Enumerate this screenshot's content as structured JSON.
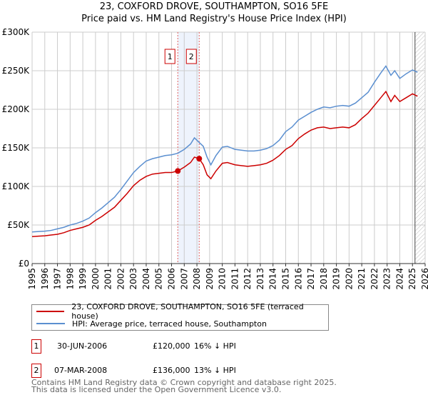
{
  "chart_data": {
    "type": "line",
    "title": "23, COXFORD DROVE, SOUTHAMPTON, SO16 5FE",
    "subtitle": "Price paid vs. HM Land Registry's House Price Index (HPI)",
    "xlim": [
      1995,
      2026
    ],
    "ylim": [
      0,
      300000
    ],
    "y_ticks": [
      0,
      50000,
      100000,
      150000,
      200000,
      250000,
      300000
    ],
    "y_tick_labels": [
      "£0",
      "£50K",
      "£100K",
      "£150K",
      "£200K",
      "£250K",
      "£300K"
    ],
    "x_ticks": [
      "1995",
      "1996",
      "1997",
      "1998",
      "1999",
      "2000",
      "2001",
      "2002",
      "2003",
      "2004",
      "2005",
      "2006",
      "2007",
      "2008",
      "2009",
      "2010",
      "2011",
      "2012",
      "2013",
      "2014",
      "2015",
      "2016",
      "2017",
      "2018",
      "2019",
      "2020",
      "2021",
      "2022",
      "2023",
      "2024",
      "2025",
      "2026"
    ],
    "grid": true,
    "series": [
      {
        "name": "23, COXFORD DROVE, SOUTHAMPTON, SO16 5FE (terraced house)",
        "color": "#cc0000",
        "x": [
          1995,
          1995.5,
          1996,
          1996.5,
          1997,
          1997.5,
          1998,
          1998.5,
          1999,
          1999.5,
          2000,
          2000.5,
          2001,
          2001.5,
          2002,
          2002.5,
          2003,
          2003.5,
          2004,
          2004.5,
          2005,
          2005.5,
          2006,
          2006.49,
          2007,
          2007.5,
          2007.8,
          2008.18,
          2008.5,
          2008.8,
          2009.1,
          2009.5,
          2010,
          2010.4,
          2011,
          2011.5,
          2012,
          2012.5,
          2013,
          2013.5,
          2014,
          2014.5,
          2015,
          2015.5,
          2016,
          2016.5,
          2017,
          2017.5,
          2018,
          2018.5,
          2019,
          2019.5,
          2020,
          2020.5,
          2021,
          2021.5,
          2022,
          2022.5,
          2022.9,
          2023.3,
          2023.6,
          2024,
          2024.5,
          2025,
          2025.4
        ],
        "values": [
          35000,
          35500,
          36000,
          37000,
          38000,
          40000,
          43000,
          45000,
          47000,
          50000,
          56000,
          61000,
          67000,
          73000,
          82000,
          91000,
          101000,
          108000,
          113000,
          116000,
          117000,
          118000,
          118000,
          120000,
          125000,
          131000,
          138000,
          136000,
          128000,
          115000,
          110000,
          120000,
          130000,
          131000,
          128000,
          127000,
          126000,
          127000,
          128000,
          130000,
          134000,
          140000,
          148000,
          153000,
          162000,
          168000,
          173000,
          176000,
          177000,
          175000,
          176000,
          177000,
          176000,
          180000,
          188000,
          195000,
          205000,
          215000,
          223000,
          210000,
          218000,
          210000,
          215000,
          220000,
          217000
        ]
      },
      {
        "name": "HPI: Average price, terraced house, Southampton",
        "color": "#5b8fd0",
        "x": [
          1995,
          1995.5,
          1996,
          1996.5,
          1997,
          1997.5,
          1998,
          1998.5,
          1999,
          1999.5,
          2000,
          2000.5,
          2001,
          2001.5,
          2002,
          2002.5,
          2003,
          2003.5,
          2004,
          2004.5,
          2005,
          2005.5,
          2006,
          2006.49,
          2007,
          2007.5,
          2007.8,
          2008.18,
          2008.5,
          2008.8,
          2009.1,
          2009.5,
          2010,
          2010.4,
          2011,
          2011.5,
          2012,
          2012.5,
          2013,
          2013.5,
          2014,
          2014.5,
          2015,
          2015.5,
          2016,
          2016.5,
          2017,
          2017.5,
          2018,
          2018.5,
          2019,
          2019.5,
          2020,
          2020.5,
          2021,
          2021.5,
          2022,
          2022.5,
          2022.9,
          2023.3,
          2023.6,
          2024,
          2024.5,
          2025,
          2025.4
        ],
        "values": [
          41000,
          41500,
          42000,
          43000,
          45000,
          47000,
          50000,
          52000,
          55000,
          59000,
          66000,
          72000,
          79000,
          86000,
          96000,
          107000,
          118000,
          126000,
          133000,
          136000,
          138000,
          140000,
          141000,
          143000,
          148000,
          155000,
          163000,
          157000,
          152000,
          138000,
          128000,
          140000,
          151000,
          152000,
          148000,
          147000,
          146000,
          146000,
          147000,
          149000,
          153000,
          160000,
          171000,
          177000,
          186000,
          191000,
          196000,
          200000,
          203000,
          202000,
          204000,
          205000,
          204000,
          208000,
          215000,
          222000,
          235000,
          247000,
          256000,
          244000,
          250000,
          240000,
          246000,
          251000,
          248000
        ]
      }
    ],
    "sales": [
      {
        "label": "1",
        "x": 2006.49,
        "value": 120000,
        "date": "30-JUN-2006",
        "price": "£120,000",
        "hpi_diff": "16% ↓ HPI"
      },
      {
        "label": "2",
        "x": 2008.18,
        "value": 136000,
        "date": "07-MAR-2008",
        "price": "£136,000",
        "hpi_diff": "13% ↓ HPI"
      }
    ],
    "forecast_start": 2025.2,
    "legend_placement": "below"
  },
  "footer": {
    "line1": "Contains HM Land Registry data © Crown copyright and database right 2025.",
    "line2": "This data is licensed under the Open Government Licence v3.0."
  }
}
